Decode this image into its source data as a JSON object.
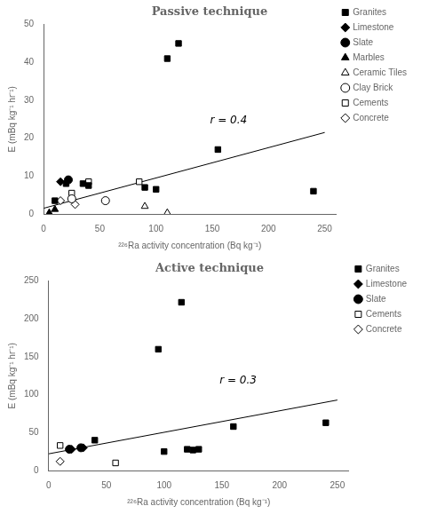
{
  "chart_data": [
    {
      "type": "scatter",
      "title": "Passive technique",
      "xlabel": "²²⁶Ra activity concentration (Bq kg⁻¹)",
      "ylabel": "E (mBq kg⁻¹ hr⁻¹)",
      "xlim": [
        0,
        260
      ],
      "ylim": [
        0,
        50
      ],
      "xticks": [
        0,
        50,
        100,
        150,
        200,
        250
      ],
      "yticks": [
        0,
        10,
        20,
        30,
        40,
        50
      ],
      "grid": false,
      "legend": "right",
      "annotations": [
        {
          "text": "r = 0.4",
          "x": 148,
          "y": 24
        }
      ],
      "series": [
        {
          "type": "line",
          "color": "black",
          "x": [
            0,
            250
          ],
          "values": [
            1.5,
            21.5
          ]
        },
        {
          "name": "Granites",
          "marker": "square",
          "color": "black",
          "x": [
            10,
            20,
            35,
            40,
            90,
            100,
            110,
            120,
            155,
            240
          ],
          "values": [
            3.5,
            8,
            8,
            7.5,
            7,
            6.5,
            41,
            45,
            17,
            6
          ]
        },
        {
          "name": "Limestone",
          "marker": "diamond",
          "color": "black",
          "x": [
            15
          ],
          "values": [
            8.5
          ]
        },
        {
          "name": "Slate",
          "marker": "circle",
          "color": "black",
          "x": [
            22
          ],
          "values": [
            9
          ]
        },
        {
          "name": "Marbles",
          "marker": "triangle",
          "color": "black",
          "x": [
            5,
            10
          ],
          "values": [
            0.3,
            1.2
          ]
        },
        {
          "name": "Ceramic Tiles",
          "marker": "triangle",
          "color": "white",
          "x": [
            90,
            110
          ],
          "values": [
            2,
            0.3
          ]
        },
        {
          "name": "Clay Brick",
          "marker": "circle",
          "color": "white",
          "x": [
            25,
            55
          ],
          "values": [
            4,
            3.5
          ]
        },
        {
          "name": "Cements",
          "marker": "square",
          "color": "white",
          "x": [
            25,
            40,
            85
          ],
          "values": [
            5.5,
            8.5,
            8.5
          ]
        },
        {
          "name": "Concrete",
          "marker": "diamond",
          "color": "white",
          "x": [
            15,
            28
          ],
          "values": [
            3.5,
            2.5
          ]
        }
      ]
    },
    {
      "type": "scatter",
      "title": "Active technique",
      "xlabel": "²²⁶Ra activity concentration (Bq kg⁻¹)",
      "ylabel": "E (mBq kg⁻¹ hr⁻¹)",
      "xlim": [
        0,
        260
      ],
      "ylim": [
        0,
        250
      ],
      "xticks": [
        0,
        50,
        100,
        150,
        200,
        250
      ],
      "yticks": [
        0,
        50,
        100,
        150,
        200,
        250
      ],
      "grid": false,
      "legend": "right",
      "annotations": [
        {
          "text": "r = 0.3",
          "x": 148,
          "y": 115
        }
      ],
      "series": [
        {
          "type": "line",
          "color": "black",
          "x": [
            0,
            250
          ],
          "values": [
            22.0,
            93.0
          ]
        },
        {
          "name": "Granites",
          "marker": "square",
          "color": "black",
          "x": [
            40,
            95,
            115,
            100,
            120,
            125,
            130,
            160,
            240
          ],
          "values": [
            40,
            160,
            222,
            25,
            28,
            27,
            28,
            58,
            63
          ]
        },
        {
          "name": "Limestone",
          "marker": "diamond",
          "color": "black",
          "x": [
            20,
            30
          ],
          "values": [
            28,
            30
          ]
        },
        {
          "name": "Slate",
          "marker": "circle",
          "color": "black",
          "x": [
            18,
            28
          ],
          "values": [
            28,
            30
          ]
        },
        {
          "name": "Cements",
          "marker": "square",
          "color": "white",
          "x": [
            10,
            58
          ],
          "values": [
            33,
            10
          ]
        },
        {
          "name": "Concrete",
          "marker": "diamond",
          "color": "white",
          "x": [
            10
          ],
          "values": [
            12
          ]
        }
      ]
    }
  ]
}
